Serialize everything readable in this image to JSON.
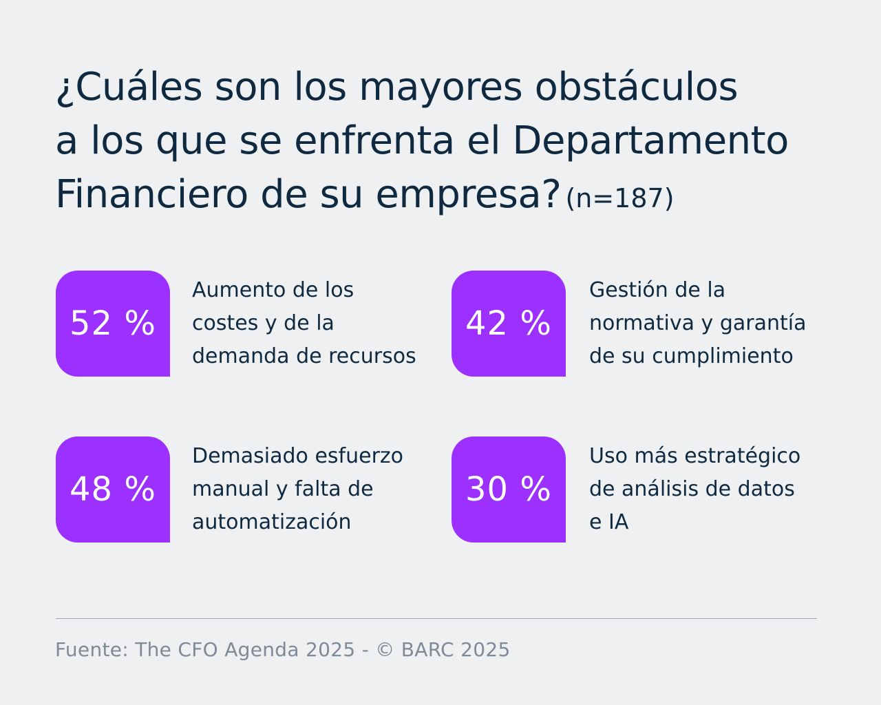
{
  "title": {
    "line1": "¿Cuáles son los mayores obstáculos",
    "line2": "a los que se enfrenta el Departamento",
    "line3": "Financiero de su empresa?",
    "sample_note": "(n=187)"
  },
  "colors": {
    "badge": "#9b30ff",
    "background": "#eff0f2",
    "text": "#0f2a40",
    "source_text": "#7e8a97"
  },
  "stats": [
    {
      "value_label": "52 %",
      "label": "Aumento de los\ncostes y de la\ndemanda de recursos"
    },
    {
      "value_label": "42 %",
      "label": "Gestión de la\nnormativa y garantía\nde su cumplimiento"
    },
    {
      "value_label": "48 %",
      "label": "Demasiado esfuerzo\nmanual y falta de\nautomatización"
    },
    {
      "value_label": "30 %",
      "label": "Uso más estratégico\nde análisis de datos\ne IA"
    }
  ],
  "chart_data": {
    "type": "table",
    "title": "¿Cuáles son los mayores obstáculos a los que se enfrenta el Departamento Financiero de su empresa?",
    "subtitle": "(n=187)",
    "categories": [
      "Aumento de los costes y de la demanda de recursos",
      "Gestión de la normativa y garantía de su cumplimiento",
      "Demasiado esfuerzo manual y falta de automatización",
      "Uso más estratégico de análisis de datos e IA"
    ],
    "values": [
      52,
      42,
      48,
      30
    ],
    "unit": "%"
  },
  "source": "Fuente: The CFO Agenda 2025 - © BARC 2025"
}
